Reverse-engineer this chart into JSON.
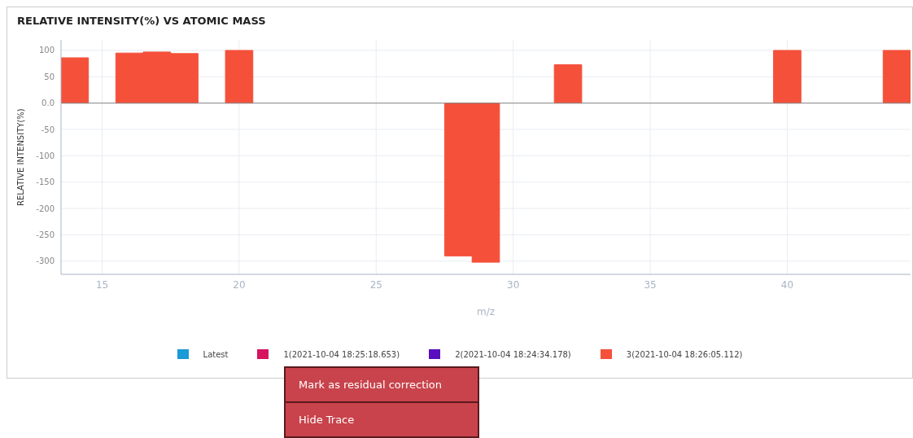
{
  "chart_data": {
    "type": "bar",
    "title": "RELATIVE INTENSITY(%) VS ATOMIC MASS",
    "xlabel": "m/z",
    "ylabel": "RELATIVE INTENSITY(%)",
    "x": [
      14,
      16,
      17,
      18,
      20,
      28,
      29,
      32,
      40,
      44
    ],
    "series": [
      {
        "name": "Latest",
        "color": "#1a9ad6",
        "values": [
          null,
          null,
          null,
          null,
          null,
          null,
          null,
          null,
          null,
          null
        ]
      },
      {
        "name": "1(2021-10-04 18:25:18.653)",
        "color": "#d6135f",
        "values": [
          null,
          null,
          null,
          null,
          null,
          null,
          null,
          null,
          null,
          null
        ]
      },
      {
        "name": "2(2021-10-04 18:24:34.178)",
        "color": "#5a0fbf",
        "values": [
          null,
          null,
          null,
          null,
          null,
          null,
          null,
          null,
          null,
          null
        ]
      },
      {
        "name": "3(2021-10-04 18:26:05.112)",
        "color": "#f5503a",
        "values": [
          86,
          95,
          97,
          94,
          100,
          -290,
          -302,
          73,
          100,
          100
        ]
      }
    ],
    "xlim": [
      13.5,
      44.5
    ],
    "xticks": [
      15,
      20,
      25,
      30,
      35,
      40
    ],
    "ylim": [
      -325,
      120
    ],
    "yticks": [
      100,
      50,
      {
        "value": 0,
        "label": "0.0"
      },
      -50,
      -100,
      -150,
      -200,
      -250,
      -300
    ],
    "grid": true,
    "legend": "bottom",
    "annotations": [
      "Mark as residual correction",
      "Hide Trace"
    ]
  }
}
